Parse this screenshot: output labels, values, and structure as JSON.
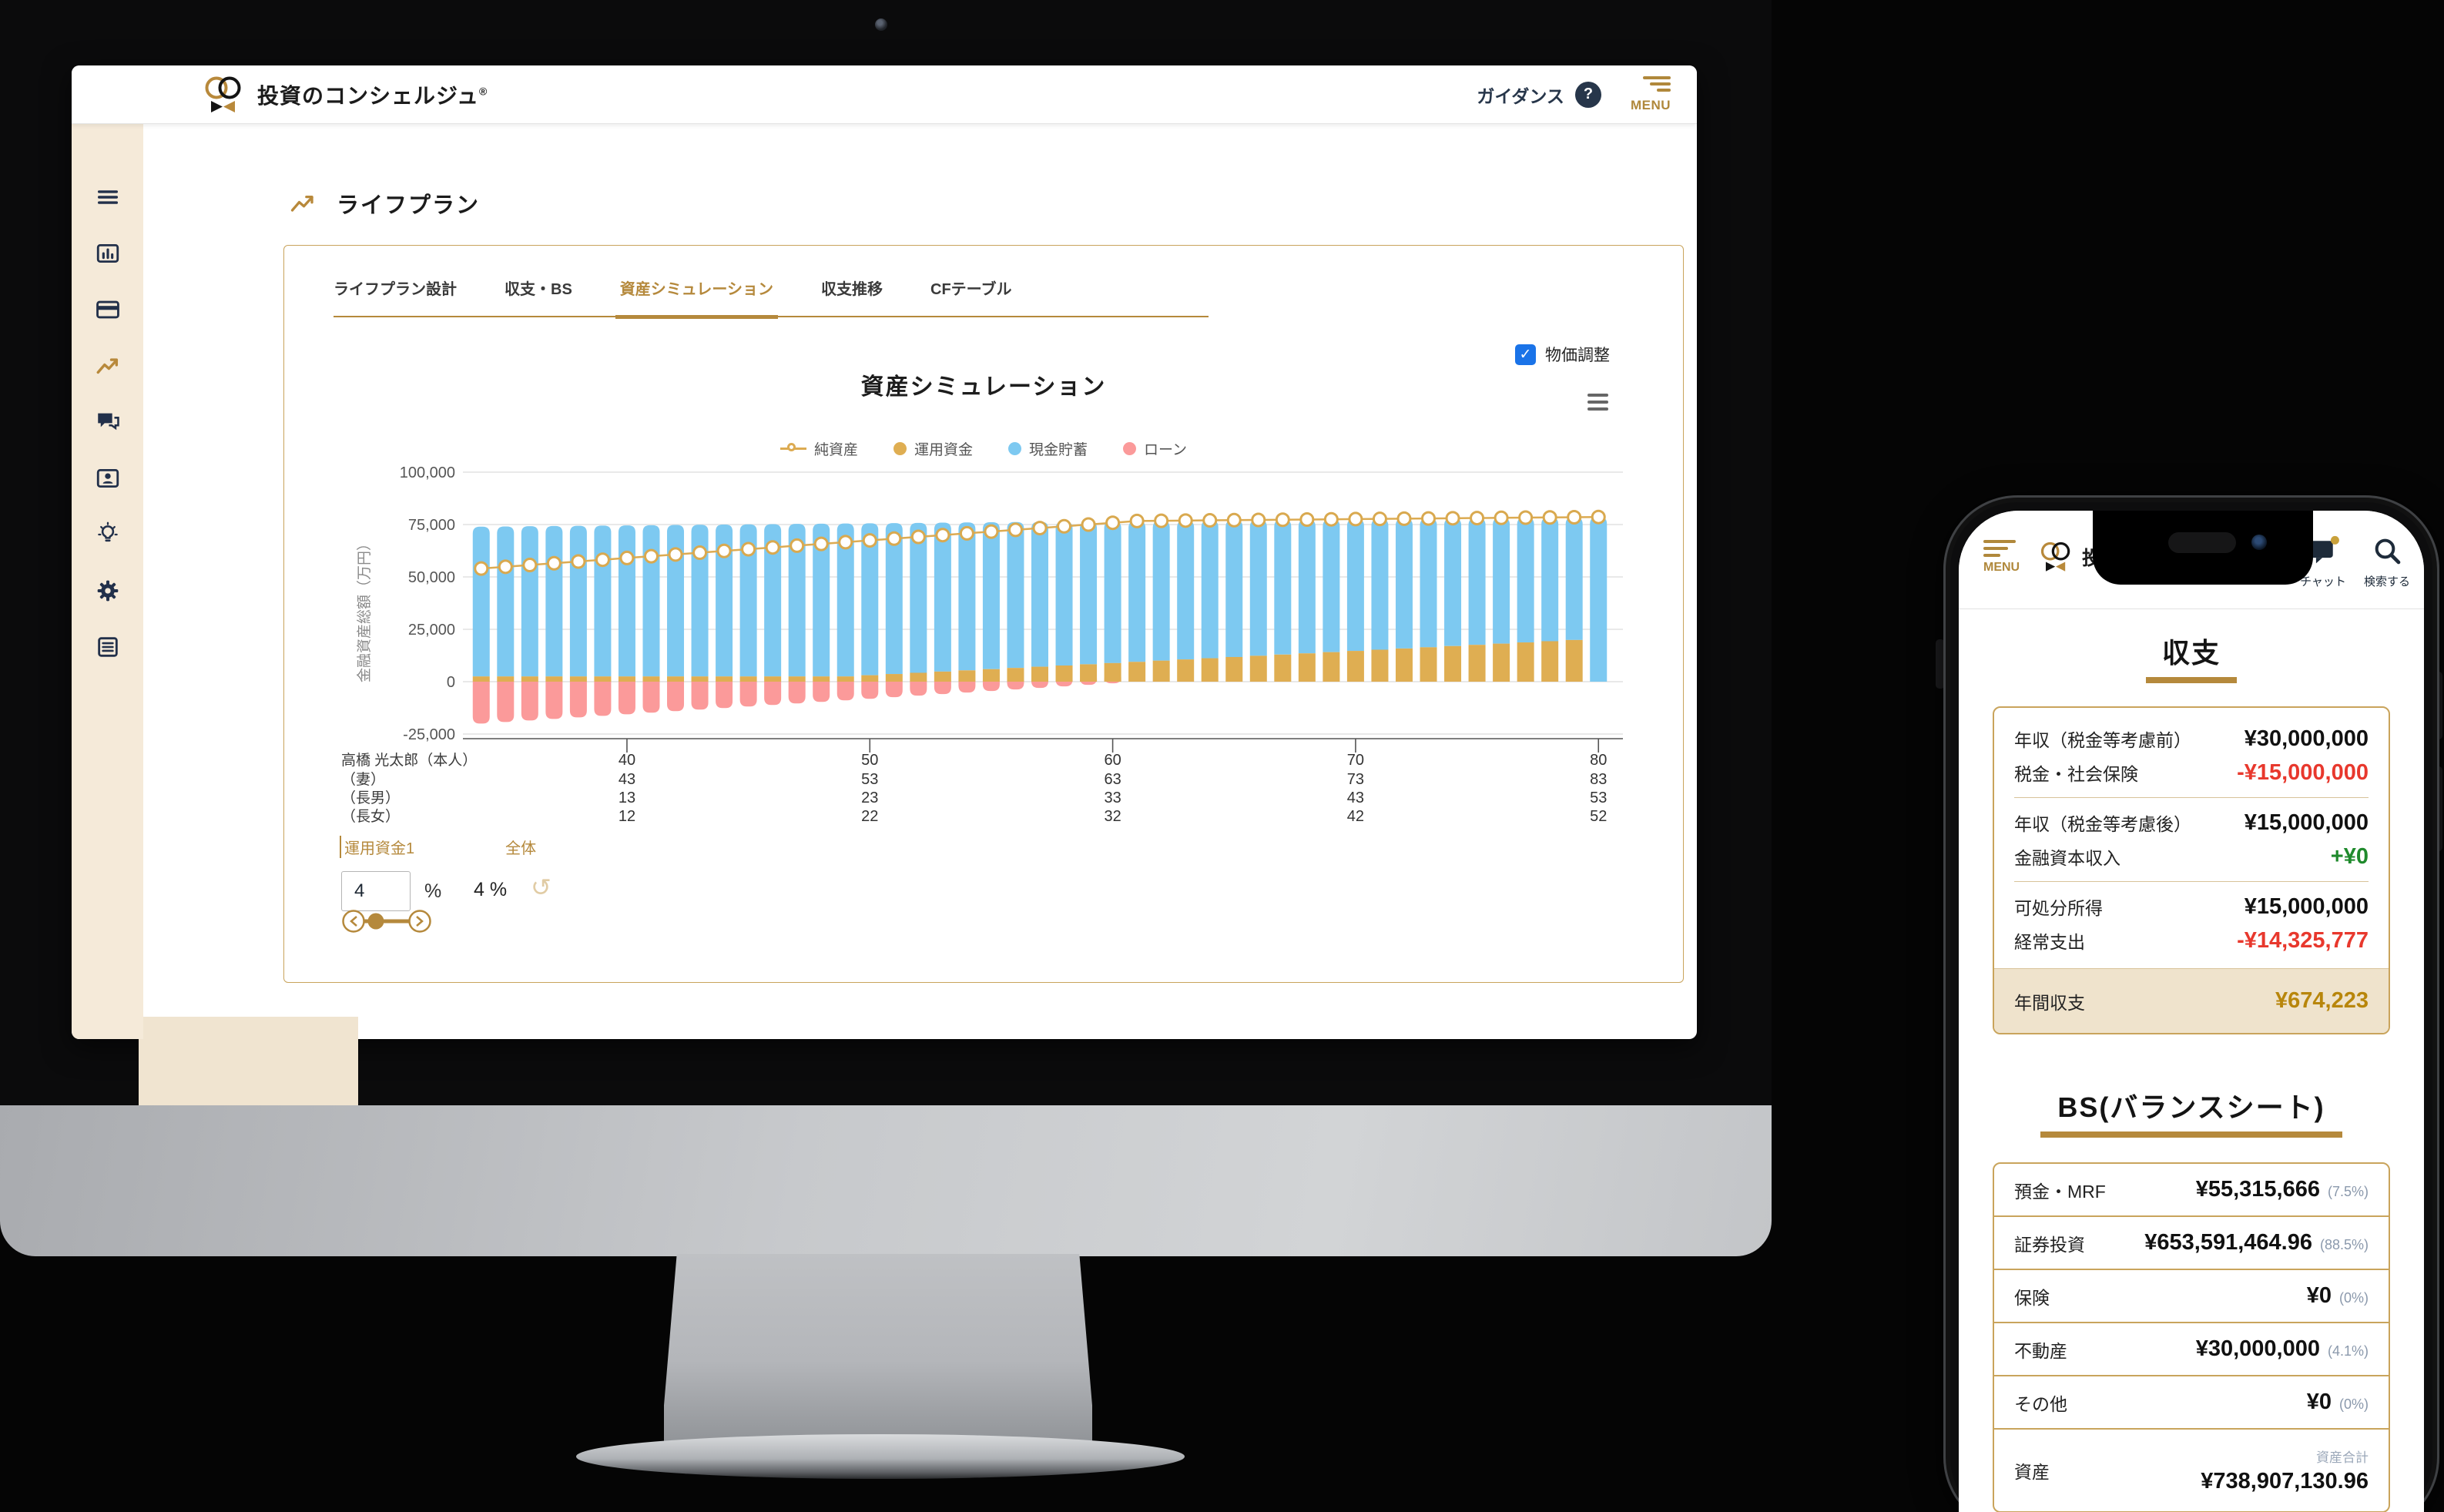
{
  "desktop": {
    "header": {
      "brand": "投資のコンシェルジュ",
      "brand_reg": "®",
      "guidance_label": "ガイダンス",
      "question_mark": "?",
      "menu_label": "MENU"
    },
    "sidebar": {
      "items": [
        {
          "icon": "hamburger-icon"
        },
        {
          "icon": "bar-chart-icon"
        },
        {
          "icon": "credit-card-icon"
        },
        {
          "icon": "line-chart-icon",
          "active": true
        },
        {
          "icon": "chat-icon"
        },
        {
          "icon": "profile-card-icon"
        },
        {
          "icon": "lightbulb-icon"
        },
        {
          "icon": "gear-icon"
        },
        {
          "icon": "document-icon"
        }
      ]
    },
    "page_title": "ライフプラン",
    "tabs": [
      {
        "label": "ライフプラン設計",
        "active": false
      },
      {
        "label": "収支・BS",
        "active": false
      },
      {
        "label": "資産シミュレーション",
        "active": true
      },
      {
        "label": "収支推移",
        "active": false
      },
      {
        "label": "CFテーブル",
        "active": false
      }
    ],
    "price_adjust": {
      "label": "物価調整",
      "checked": true,
      "check_glyph": "✓",
      "accent": "#1A73E8"
    },
    "chart_title": "資産シミュレーション",
    "controls": {
      "fund_label": "運用資金1",
      "overall_label": "全体",
      "rate_value": "4",
      "percent_sign": "%",
      "overall_value": "4 %",
      "undo_glyph": "↺"
    }
  },
  "chart_data": {
    "type": "bar",
    "subtype": "stacked-bars-with-line",
    "title": "資産シミュレーション",
    "ylabel": "金融資産総額（万円）",
    "ylim": [
      -32000,
      105000
    ],
    "yticks": [
      100000,
      75000,
      50000,
      25000,
      0,
      -25000
    ],
    "ytick_labels": [
      "100,000",
      "75,000",
      "50,000",
      "25,000",
      "0",
      "-25,000"
    ],
    "grid": true,
    "legend_position": "top-center",
    "legend": [
      {
        "name": "純資産",
        "type": "line",
        "color": "#DCAB52"
      },
      {
        "name": "運用資金",
        "type": "bar",
        "color": "#DFAE52"
      },
      {
        "name": "現金貯蓄",
        "type": "bar",
        "color": "#7DC9F1"
      },
      {
        "name": "ローン",
        "type": "bar",
        "color": "#FB9A9A"
      }
    ],
    "x_tick_ages": [
      40,
      50,
      60,
      70,
      80
    ],
    "x_family_rows": [
      {
        "label": "高橋 光太郎（本人）",
        "ages": [
          40,
          50,
          60,
          70,
          80
        ]
      },
      {
        "label": "（妻）",
        "ages": [
          43,
          53,
          63,
          73,
          83
        ]
      },
      {
        "label": "（長男）",
        "ages": [
          13,
          23,
          33,
          43,
          53
        ]
      },
      {
        "label": "（長女）",
        "ages": [
          12,
          22,
          32,
          42,
          52
        ]
      }
    ],
    "ages": [
      34,
      35,
      36,
      37,
      38,
      39,
      40,
      41,
      42,
      43,
      44,
      45,
      46,
      47,
      48,
      49,
      50,
      51,
      52,
      53,
      54,
      55,
      56,
      57,
      58,
      59,
      60,
      61,
      62,
      63,
      64,
      65,
      66,
      67,
      68,
      69,
      70,
      71,
      72,
      73,
      74,
      75,
      76,
      77,
      78,
      79,
      80
    ],
    "series": {
      "現金貯蓄": [
        71500,
        71600,
        71700,
        71800,
        71900,
        72000,
        72100,
        72200,
        72300,
        72400,
        72500,
        72600,
        72700,
        72800,
        72900,
        73000,
        72520,
        72040,
        71560,
        71080,
        70600,
        70120,
        69640,
        69160,
        68680,
        68200,
        67720,
        67240,
        66760,
        66280,
        65800,
        65320,
        64840,
        64360,
        63880,
        63400,
        62920,
        62440,
        61960,
        61480,
        61000,
        60520,
        60040,
        59560,
        59080,
        58600,
        78600
      ],
      "運用資金": [
        2500,
        2500,
        2500,
        2500,
        2500,
        2500,
        2500,
        2500,
        2500,
        2500,
        2500,
        2500,
        2500,
        2500,
        2500,
        2500,
        3080,
        3660,
        4240,
        4820,
        5400,
        5980,
        6560,
        7140,
        7720,
        8300,
        8880,
        9460,
        10040,
        10620,
        11200,
        11780,
        12360,
        12940,
        13520,
        14100,
        14680,
        15260,
        15840,
        16420,
        17000,
        17580,
        18160,
        18740,
        19320,
        19900,
        0
      ],
      "ローン": [
        -20000,
        -19260,
        -18520,
        -17780,
        -17040,
        -16300,
        -15560,
        -14820,
        -14080,
        -13340,
        -12600,
        -11860,
        -11120,
        -10380,
        -9640,
        -8900,
        -8160,
        -7420,
        -6680,
        -5940,
        -5200,
        -4460,
        -3720,
        -2980,
        -2240,
        -1500,
        -760,
        0,
        0,
        0,
        0,
        0,
        0,
        0,
        0,
        0,
        0,
        0,
        0,
        0,
        0,
        0,
        0,
        0,
        0,
        0,
        0
      ],
      "純資産": [
        54000,
        54840,
        55680,
        56520,
        57360,
        58200,
        59040,
        59880,
        60720,
        61560,
        62400,
        63240,
        64080,
        64920,
        65760,
        66600,
        67440,
        68280,
        69120,
        69960,
        70800,
        71640,
        72480,
        73320,
        74160,
        75000,
        75840,
        76700,
        76800,
        76900,
        77000,
        77100,
        77200,
        77300,
        77400,
        77500,
        77600,
        77700,
        77800,
        77900,
        78000,
        78100,
        78200,
        78300,
        78400,
        78500,
        78600
      ]
    }
  },
  "phone": {
    "header": {
      "menu_label": "MENU",
      "brand": "投資のコンシェルジュ",
      "chat_label": "チャット",
      "search_label": "検索する"
    },
    "income_section": {
      "title": "収支",
      "groups": [
        [
          {
            "label": "年収（税金等考慮前）",
            "value": "¥30,000,000",
            "tone": "black"
          },
          {
            "label": "税金・社会保険",
            "value": "-¥15,000,000",
            "tone": "red"
          }
        ],
        [
          {
            "label": "年収（税金等考慮後）",
            "value": "¥15,000,000",
            "tone": "black"
          },
          {
            "label": "金融資本収入",
            "value": "+¥0",
            "tone": "green"
          }
        ],
        [
          {
            "label": "可処分所得",
            "value": "¥15,000,000",
            "tone": "black"
          },
          {
            "label": "経常支出",
            "value": "-¥14,325,777",
            "tone": "red"
          }
        ]
      ],
      "total_row": {
        "label": "年間収支",
        "value": "¥674,223",
        "tone": "gold"
      }
    },
    "bs_section": {
      "title": "BS(バランスシート)",
      "rows": [
        {
          "label": "預金・MRF",
          "value": "¥55,315,666",
          "percent": "(7.5%)"
        },
        {
          "label": "証券投資",
          "value": "¥653,591,464.96",
          "percent": "(88.5%)"
        },
        {
          "label": "保険",
          "value": "¥0",
          "percent": "(0%)"
        },
        {
          "label": "不動産",
          "value": "¥30,000,000",
          "percent": "(4.1%)"
        },
        {
          "label": "その他",
          "value": "¥0",
          "percent": "(0%)"
        },
        {
          "label": "資産",
          "sublabel": "資産合計",
          "value": "¥738,907,130.96"
        }
      ]
    }
  }
}
